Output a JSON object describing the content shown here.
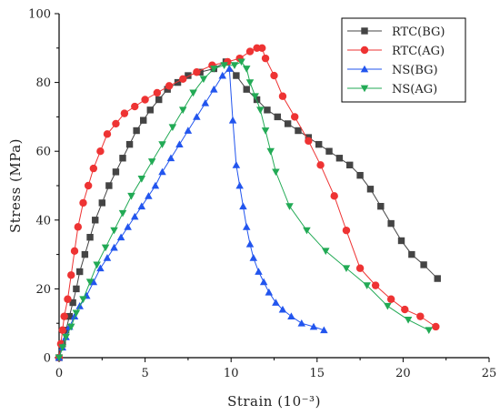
{
  "chart_data": {
    "type": "line",
    "xlabel": "Strain (10⁻³)",
    "ylabel": "Stress (MPa)",
    "xlim": [
      0,
      25
    ],
    "ylim": [
      0,
      100
    ],
    "xticks": [
      0,
      5,
      10,
      15,
      20,
      25
    ],
    "yticks": [
      0,
      20,
      40,
      60,
      80,
      100
    ],
    "grid": false,
    "legend_position": "top-right",
    "series": [
      {
        "name": "RTC(BG)",
        "color": "#444444",
        "marker": "square",
        "x": [
          0,
          0.2,
          0.4,
          0.6,
          0.8,
          1.0,
          1.2,
          1.5,
          1.8,
          2.1,
          2.5,
          2.9,
          3.3,
          3.7,
          4.1,
          4.5,
          4.9,
          5.3,
          5.8,
          6.3,
          6.9,
          7.5,
          8.2,
          9.0,
          9.7,
          10.3,
          10.9,
          11.5,
          12.1,
          12.7,
          13.3,
          13.9,
          14.5,
          15.1,
          15.7,
          16.3,
          16.9,
          17.5,
          18.1,
          18.7,
          19.3,
          19.9,
          20.5,
          21.2,
          22.0
        ],
        "y": [
          0,
          4,
          8,
          12,
          16,
          20,
          25,
          30,
          35,
          40,
          45,
          50,
          54,
          58,
          62,
          66,
          69,
          72,
          75,
          78,
          80,
          82,
          83,
          84,
          86,
          82,
          78,
          75,
          72,
          70,
          68,
          66,
          64,
          62,
          60,
          58,
          56,
          53,
          49,
          44,
          39,
          34,
          30,
          27,
          23
        ]
      },
      {
        "name": "RTC(AG)",
        "color": "#ee3333",
        "marker": "circle",
        "x": [
          0,
          0.1,
          0.2,
          0.3,
          0.5,
          0.7,
          0.9,
          1.1,
          1.4,
          1.7,
          2.0,
          2.4,
          2.8,
          3.3,
          3.8,
          4.4,
          5.0,
          5.7,
          6.4,
          7.2,
          8.0,
          8.9,
          9.8,
          10.5,
          11.1,
          11.5,
          11.8,
          12.0,
          12.5,
          13.0,
          13.7,
          14.5,
          15.2,
          16.0,
          16.7,
          17.5,
          18.4,
          19.3,
          20.1,
          21.0,
          21.9
        ],
        "y": [
          0,
          4,
          8,
          12,
          17,
          24,
          31,
          38,
          45,
          50,
          55,
          60,
          65,
          68,
          71,
          73,
          75,
          77,
          79,
          81,
          83,
          85,
          86,
          87,
          89,
          90,
          90,
          87,
          82,
          76,
          70,
          63,
          56,
          47,
          37,
          26,
          21,
          17,
          14,
          12,
          9
        ]
      },
      {
        "name": "NS(BG)",
        "color": "#2255ee",
        "marker": "triangle-up",
        "x": [
          0,
          0.2,
          0.4,
          0.6,
          0.9,
          1.2,
          1.6,
          2.0,
          2.4,
          2.8,
          3.2,
          3.6,
          4.0,
          4.4,
          4.8,
          5.2,
          5.6,
          6.0,
          6.5,
          7.0,
          7.5,
          8.0,
          8.5,
          9.0,
          9.5,
          9.9,
          10.1,
          10.3,
          10.5,
          10.7,
          10.9,
          11.1,
          11.3,
          11.6,
          11.9,
          12.2,
          12.6,
          13.0,
          13.5,
          14.1,
          14.8,
          15.4
        ],
        "y": [
          0,
          3,
          6,
          9,
          12,
          15,
          18,
          22,
          26,
          29,
          32,
          35,
          38,
          41,
          44,
          47,
          50,
          54,
          58,
          62,
          66,
          70,
          74,
          78,
          82,
          84,
          69,
          56,
          50,
          44,
          38,
          33,
          29,
          25,
          22,
          19,
          16,
          14,
          12,
          10,
          9,
          8
        ]
      },
      {
        "name": "NS(AG)",
        "color": "#22aa55",
        "marker": "triangle-down",
        "x": [
          0,
          0.2,
          0.4,
          0.7,
          1.0,
          1.4,
          1.8,
          2.2,
          2.7,
          3.2,
          3.7,
          4.2,
          4.8,
          5.4,
          6.0,
          6.6,
          7.2,
          7.8,
          8.4,
          9.0,
          9.6,
          10.2,
          10.6,
          10.9,
          11.1,
          11.4,
          11.7,
          12.0,
          12.3,
          12.6,
          13.4,
          14.4,
          15.5,
          16.7,
          17.9,
          19.1,
          20.3,
          21.5
        ],
        "y": [
          0,
          3,
          6,
          9,
          13,
          17,
          22,
          27,
          32,
          37,
          42,
          47,
          52,
          57,
          62,
          67,
          72,
          77,
          81,
          84,
          85,
          85,
          86,
          84,
          80,
          76,
          72,
          66,
          60,
          54,
          44,
          37,
          31,
          26,
          21,
          15,
          11,
          8
        ]
      }
    ]
  }
}
